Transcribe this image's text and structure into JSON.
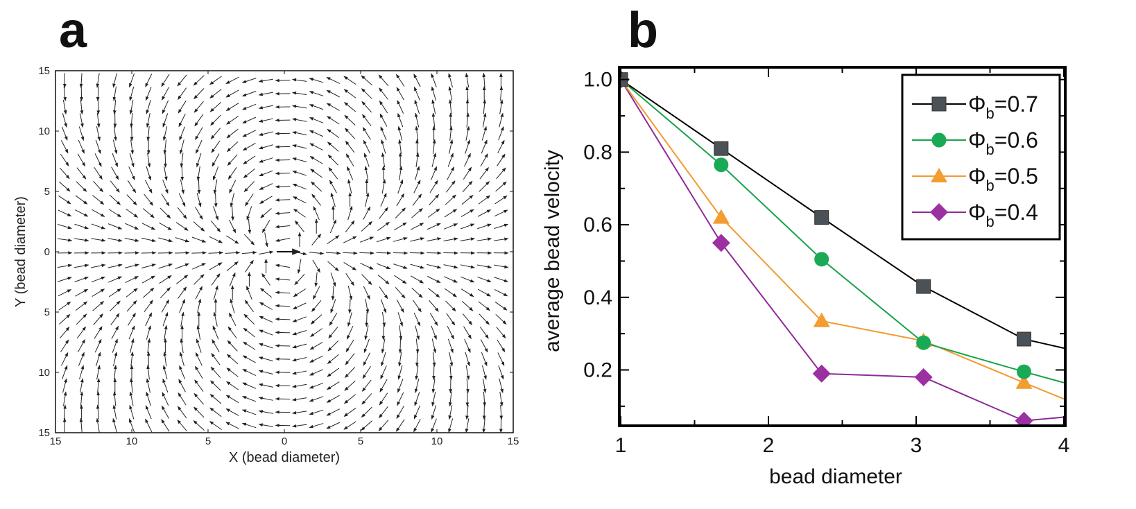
{
  "panel_a": {
    "letter": "a",
    "xlabel": "X (bead diameter)",
    "ylabel": "Y (bead diameter)"
  },
  "panel_b": {
    "letter": "b"
  },
  "chart_data": [
    {
      "type": "quiver",
      "xlabel": "X (bead diameter)",
      "ylabel": "Y (bead diameter)",
      "xlim": [
        -15,
        15
      ],
      "ylim": [
        -15,
        15
      ],
      "xticks": [
        -15,
        -10,
        -5,
        0,
        5,
        10,
        15
      ],
      "yticks": [
        15,
        10,
        5,
        0,
        -5,
        -10,
        -15
      ],
      "xtick_labels": [
        "15",
        "10",
        "5",
        "0",
        "5",
        "10",
        "15"
      ],
      "ytick_labels": [
        "15",
        "10",
        "5",
        "0",
        "5",
        "10",
        "15"
      ],
      "field": "dipolar flow around a bead moving in +x at origin (vortices near (0, +6) and (0, -6))",
      "grid_step": 1,
      "source_velocity": [
        1,
        0
      ]
    },
    {
      "type": "line",
      "xlabel": "bead diameter",
      "ylabel": "average bead velocity",
      "xlim": [
        1,
        4
      ],
      "ylim": [
        0.05,
        1.03
      ],
      "xticks": [
        1,
        2,
        3,
        4
      ],
      "xtick_labels": [
        "1",
        "2",
        "3",
        "4"
      ],
      "yticks": [
        0.2,
        0.4,
        0.6,
        0.8,
        1.0
      ],
      "ytick_labels": [
        "0.2",
        "0.4",
        "0.6",
        "0.8",
        "1.0"
      ],
      "legend_position": "top-right",
      "x": [
        1,
        1.68,
        2.36,
        3.05,
        3.73,
        4.0
      ],
      "series": [
        {
          "name": "Φb=0.7",
          "label_main": "Φ",
          "label_sub": "b",
          "label_val": "=0.7",
          "color": "#000000",
          "marker_color": "#4a5257",
          "marker": "square",
          "values": [
            1.0,
            0.81,
            0.62,
            0.43,
            0.285,
            0.26
          ]
        },
        {
          "name": "Φb=0.6",
          "label_main": "Φ",
          "label_sub": "b",
          "label_val": "=0.6",
          "color": "#17a34a",
          "marker_color": "#1aaa55",
          "marker": "circle",
          "values": [
            1.0,
            0.765,
            0.505,
            0.275,
            0.195,
            0.165
          ]
        },
        {
          "name": "Φb=0.5",
          "label_main": "Φ",
          "label_sub": "b",
          "label_val": "=0.5",
          "color": "#f29a2e",
          "marker_color": "#f39c30",
          "marker": "triangle",
          "values": [
            1.0,
            0.62,
            0.335,
            0.28,
            0.165,
            0.12
          ]
        },
        {
          "name": "Φb=0.4",
          "label_main": "Φ",
          "label_sub": "b",
          "label_val": "=0.4",
          "color": "#8e2a97",
          "marker_color": "#9b30a3",
          "marker": "diamond",
          "values": [
            1.0,
            0.55,
            0.19,
            0.18,
            0.06,
            0.07
          ]
        }
      ]
    }
  ]
}
